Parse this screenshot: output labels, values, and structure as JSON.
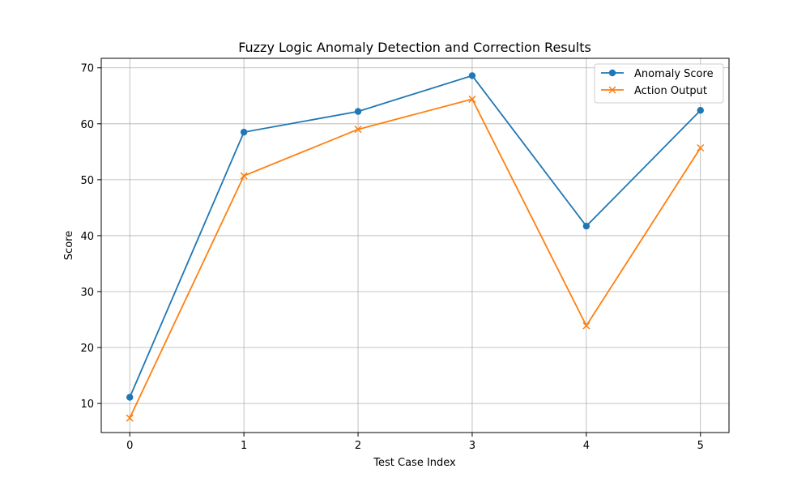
{
  "chart_data": {
    "type": "line",
    "title": "Fuzzy Logic Anomaly Detection and Correction Results",
    "xlabel": "Test Case Index",
    "ylabel": "Score",
    "x": [
      0,
      1,
      2,
      3,
      4,
      5
    ],
    "xticks": [
      "0",
      "1",
      "2",
      "3",
      "4",
      "5"
    ],
    "yticks": [
      "10",
      "20",
      "30",
      "40",
      "50",
      "60",
      "70"
    ],
    "xlim": [
      -0.25,
      5.25
    ],
    "ylim": [
      4.8,
      71.7
    ],
    "grid": true,
    "legend_position": "top-right",
    "series": [
      {
        "name": "Anomaly Score",
        "marker": "circle",
        "color": "#1f77b4",
        "values": [
          11.1,
          58.5,
          62.2,
          68.6,
          41.7,
          62.4
        ]
      },
      {
        "name": "Action Output",
        "marker": "x",
        "color": "#ff7f0e",
        "values": [
          7.4,
          50.7,
          59.0,
          64.4,
          23.9,
          55.7
        ]
      }
    ]
  }
}
